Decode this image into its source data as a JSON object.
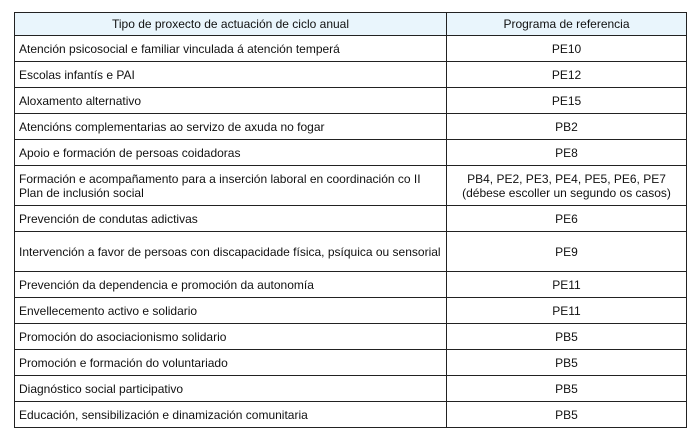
{
  "table": {
    "headers": [
      "Tipo de proxecto de actuación de ciclo anual",
      "Programa de referencia"
    ],
    "rows": [
      {
        "tipo": "Atención psicosocial e familiar vinculada á atención temperá",
        "programa": "PE10"
      },
      {
        "tipo": "Escolas infantís e PAI",
        "programa": "PE12"
      },
      {
        "tipo": "Aloxamento alternativo",
        "programa": "PE15"
      },
      {
        "tipo": "Atencións complementarias ao servizo de axuda no fogar",
        "programa": "PB2"
      },
      {
        "tipo": "Apoio e formación de persoas coidadoras",
        "programa": "PE8"
      },
      {
        "tipo": "Formación e acompañamento para a inserción laboral en coordinación co II Plan de inclusión social",
        "programa": "PB4, PE2, PE3, PE4, PE5, PE6, PE7 (débese escoller un segundo os casos)"
      },
      {
        "tipo": "Prevención de condutas adictivas",
        "programa": "PE6"
      },
      {
        "tipo": "Intervención a favor de persoas con discapacidade física, psíquica ou sensorial",
        "programa": "PE9"
      },
      {
        "tipo": "Prevención da dependencia e promoción da autonomía",
        "programa": "PE11"
      },
      {
        "tipo": "Envellecemento activo e solidario",
        "programa": "PE11"
      },
      {
        "tipo": "Promoción do asociacionismo solidario",
        "programa": "PB5"
      },
      {
        "tipo": "Promoción e formación do voluntariado",
        "programa": "PB5"
      },
      {
        "tipo": "Diagnóstico social participativo",
        "programa": "PB5"
      },
      {
        "tipo": "Educación, sensibilización e dinamización comunitaria",
        "programa": "PB5"
      }
    ]
  },
  "colors": {
    "header_bg": "#e9f5fc",
    "border": "#222222"
  }
}
